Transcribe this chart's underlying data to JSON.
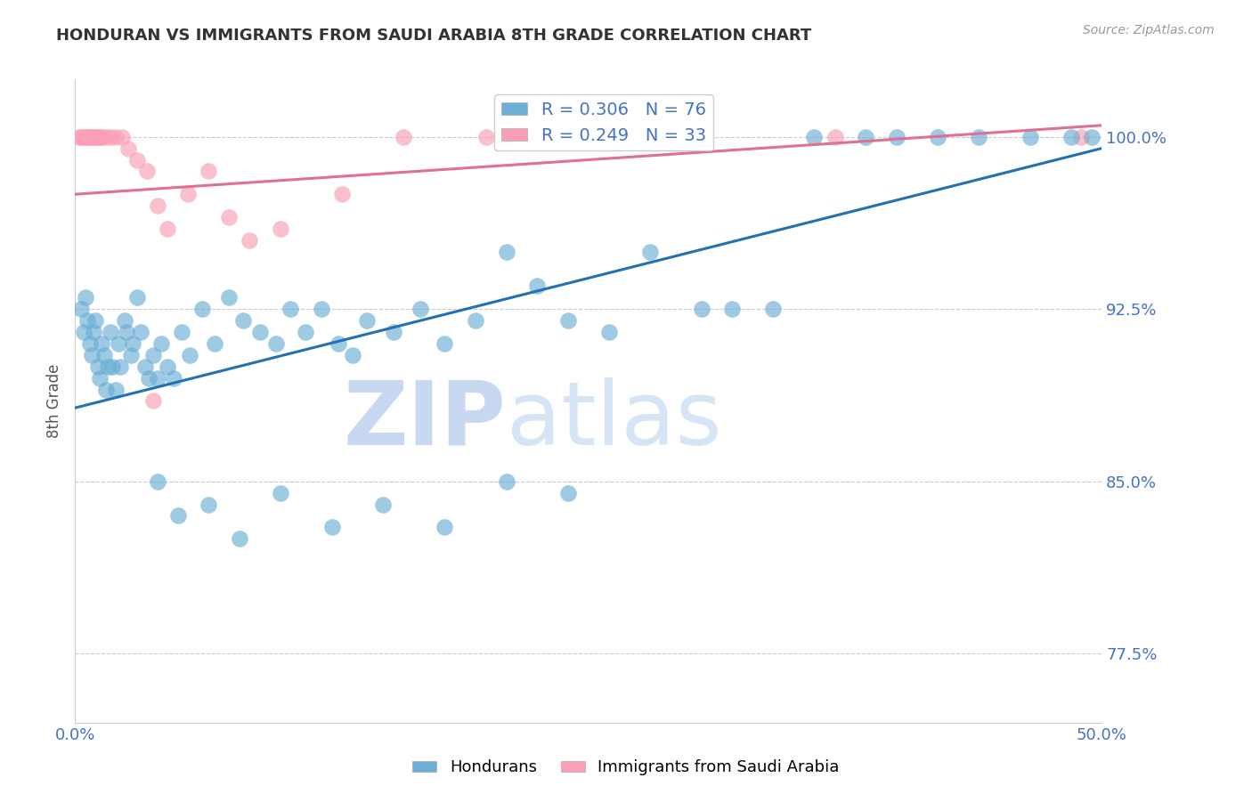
{
  "title": "HONDURAN VS IMMIGRANTS FROM SAUDI ARABIA 8TH GRADE CORRELATION CHART",
  "source": "Source: ZipAtlas.com",
  "ylabel": "8th Grade",
  "xlim": [
    0.0,
    50.0
  ],
  "ylim": [
    74.5,
    102.5
  ],
  "yticks": [
    77.5,
    85.0,
    92.5,
    100.0
  ],
  "ytick_labels": [
    "77.5%",
    "85.0%",
    "92.5%",
    "100.0%"
  ],
  "xticks": [
    0.0,
    10.0,
    20.0,
    30.0,
    40.0,
    50.0
  ],
  "xtick_labels": [
    "0.0%",
    "",
    "",
    "",
    "",
    "50.0%"
  ],
  "blue_color": "#6baed6",
  "pink_color": "#fa9fb5",
  "blue_line_color": "#2171b5",
  "pink_line_color": "#e07090",
  "legend_blue_r": "R = 0.306",
  "legend_blue_n": "N = 76",
  "legend_pink_r": "R = 0.249",
  "legend_pink_n": "N = 33",
  "watermark_zip": "ZIP",
  "watermark_atlas": "atlas",
  "axis_color": "#4472c4",
  "title_color": "#333333",
  "blue_line_x0": 0.0,
  "blue_line_y0": 88.2,
  "blue_line_x1": 50.0,
  "blue_line_y1": 99.5,
  "pink_line_x0": 0.0,
  "pink_line_y0": 97.5,
  "pink_line_x1": 50.0,
  "pink_line_y1": 100.5,
  "blue_scatter_x": [
    0.3,
    0.4,
    0.5,
    0.6,
    0.7,
    0.8,
    0.9,
    1.0,
    1.1,
    1.2,
    1.3,
    1.4,
    1.5,
    1.6,
    1.7,
    1.8,
    2.0,
    2.1,
    2.2,
    2.4,
    2.5,
    2.7,
    2.8,
    3.0,
    3.2,
    3.4,
    3.6,
    3.8,
    4.0,
    4.2,
    4.5,
    4.8,
    5.2,
    5.6,
    6.2,
    6.8,
    7.5,
    8.2,
    9.0,
    9.8,
    10.5,
    11.2,
    12.0,
    12.8,
    13.5,
    14.2,
    15.5,
    16.8,
    18.0,
    19.5,
    21.0,
    22.5,
    24.0,
    26.0,
    28.0,
    30.5,
    32.0,
    34.0,
    36.0,
    38.5,
    40.0,
    42.0,
    44.0,
    46.5,
    48.5,
    49.5,
    4.0,
    5.0,
    6.5,
    8.0,
    10.0,
    12.5,
    15.0,
    18.0,
    21.0,
    24.0
  ],
  "blue_scatter_y": [
    92.5,
    91.5,
    93.0,
    92.0,
    91.0,
    90.5,
    91.5,
    92.0,
    90.0,
    89.5,
    91.0,
    90.5,
    89.0,
    90.0,
    91.5,
    90.0,
    89.0,
    91.0,
    90.0,
    92.0,
    91.5,
    90.5,
    91.0,
    93.0,
    91.5,
    90.0,
    89.5,
    90.5,
    89.5,
    91.0,
    90.0,
    89.5,
    91.5,
    90.5,
    92.5,
    91.0,
    93.0,
    92.0,
    91.5,
    91.0,
    92.5,
    91.5,
    92.5,
    91.0,
    90.5,
    92.0,
    91.5,
    92.5,
    91.0,
    92.0,
    95.0,
    93.5,
    92.0,
    91.5,
    95.0,
    92.5,
    92.5,
    92.5,
    100.0,
    100.0,
    100.0,
    100.0,
    100.0,
    100.0,
    100.0,
    100.0,
    85.0,
    83.5,
    84.0,
    82.5,
    84.5,
    83.0,
    84.0,
    83.0,
    85.0,
    84.5
  ],
  "pink_scatter_x": [
    0.2,
    0.3,
    0.4,
    0.5,
    0.6,
    0.7,
    0.8,
    0.9,
    1.0,
    1.1,
    1.2,
    1.3,
    1.5,
    1.7,
    2.0,
    2.3,
    2.6,
    3.0,
    3.5,
    4.0,
    4.5,
    5.5,
    6.5,
    7.5,
    8.5,
    10.0,
    13.0,
    16.0,
    20.0,
    27.0,
    37.0,
    49.0,
    3.8
  ],
  "pink_scatter_y": [
    100.0,
    100.0,
    100.0,
    100.0,
    100.0,
    100.0,
    100.0,
    100.0,
    100.0,
    100.0,
    100.0,
    100.0,
    100.0,
    100.0,
    100.0,
    100.0,
    99.5,
    99.0,
    98.5,
    97.0,
    96.0,
    97.5,
    98.5,
    96.5,
    95.5,
    96.0,
    97.5,
    100.0,
    100.0,
    100.0,
    100.0,
    100.0,
    88.5
  ]
}
